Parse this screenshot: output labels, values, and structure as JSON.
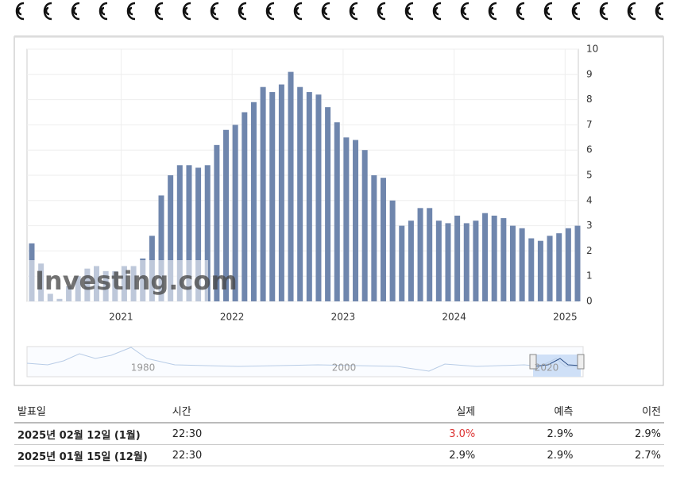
{
  "chart_data": {
    "type": "bar",
    "categories": [
      null,
      null,
      null,
      null,
      null,
      null,
      null,
      null,
      null,
      null,
      "2021",
      null,
      null,
      null,
      null,
      null,
      null,
      null,
      null,
      null,
      null,
      null,
      "2022",
      null,
      null,
      null,
      null,
      null,
      null,
      null,
      null,
      null,
      null,
      null,
      "2023",
      null,
      null,
      null,
      null,
      null,
      null,
      null,
      null,
      null,
      null,
      null,
      "2024",
      null,
      null,
      null,
      null,
      null,
      null,
      null,
      null,
      null,
      null,
      null,
      "2025",
      null
    ],
    "values": [
      2.3,
      1.5,
      0.3,
      0.1,
      0.6,
      1.0,
      1.3,
      1.4,
      1.2,
      1.2,
      1.4,
      1.4,
      1.7,
      2.6,
      4.2,
      5.0,
      5.4,
      5.4,
      5.3,
      5.4,
      6.2,
      6.8,
      7.0,
      7.5,
      7.9,
      8.5,
      8.3,
      8.6,
      9.1,
      8.5,
      8.3,
      8.2,
      7.7,
      7.1,
      6.5,
      6.4,
      6.0,
      5.0,
      4.9,
      4.0,
      3.0,
      3.2,
      3.7,
      3.7,
      3.2,
      3.1,
      3.4,
      3.1,
      3.2,
      3.5,
      3.4,
      3.3,
      3.0,
      2.9,
      2.5,
      2.4,
      2.6,
      2.7,
      2.9,
      3.0
    ],
    "color": "#6f86ad",
    "ylim": [
      0,
      10
    ],
    "yticks": [
      0,
      1,
      2,
      3,
      4,
      5,
      6,
      7,
      8,
      9,
      10
    ],
    "grid": true,
    "watermark": "Investing.com",
    "navigator": {
      "labels": [
        "1980",
        "2000",
        "2020"
      ]
    }
  },
  "table": {
    "header": [
      "발표일",
      "시간",
      "실제",
      "예측",
      "이전"
    ],
    "rows": [
      [
        "2025년 02월 12일 (1월)",
        "22:30",
        "3.0%",
        "2.9%",
        "2.9%"
      ],
      [
        "2025년 01월 15일 (12월)",
        "22:30",
        "2.9%",
        "2.9%",
        "2.7%"
      ]
    ]
  }
}
